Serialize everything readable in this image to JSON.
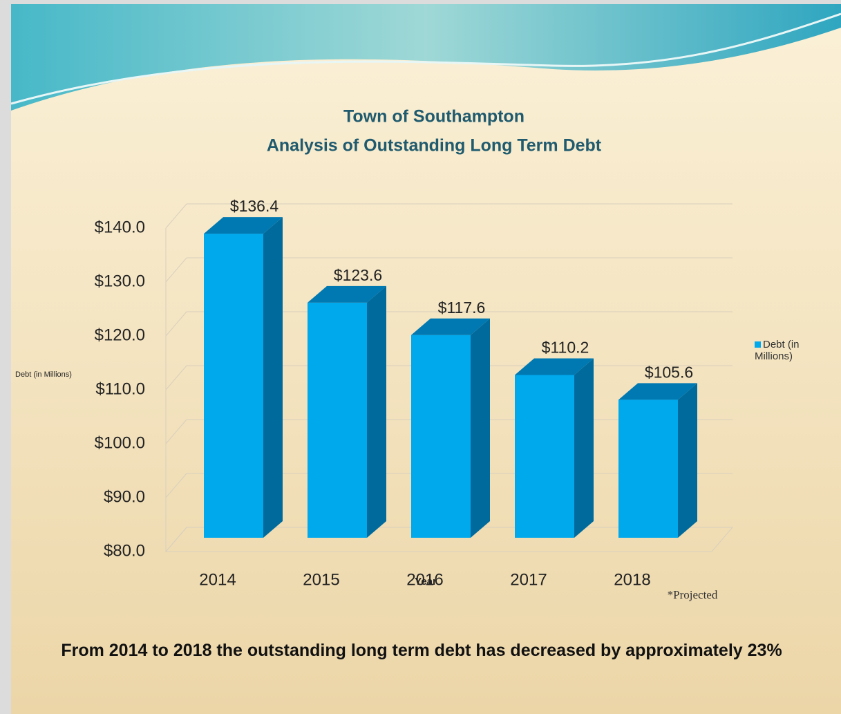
{
  "chart_data": {
    "type": "bar3d",
    "title": "Town of Southampton",
    "subtitle": "Analysis of Outstanding Long Term Debt",
    "x_label": "Year",
    "y_label": "Debt (in Millions)",
    "categories": [
      "2014",
      "2015",
      "2016",
      "2017",
      "2018"
    ],
    "series": [
      {
        "name": "Debt (in Millions)",
        "color": "#00a8ec",
        "values": [
          136.4,
          123.6,
          117.6,
          110.2,
          105.6
        ],
        "value_labels": [
          "$136.4",
          "$123.6",
          "$117.6",
          "$110.2",
          "$105.6"
        ]
      }
    ],
    "ylim": [
      80,
      140
    ],
    "yticks": [
      {
        "value": 80,
        "label": "$80.0"
      },
      {
        "value": 90,
        "label": "$90.0"
      },
      {
        "value": 100,
        "label": "$100.0"
      },
      {
        "value": 110,
        "label": "$110.0"
      },
      {
        "value": 120,
        "label": "$120.0"
      },
      {
        "value": 130,
        "label": "$130.0"
      },
      {
        "value": 140,
        "label": "$140.0"
      }
    ],
    "grid": true,
    "legend": "right",
    "note": "*Projected",
    "annotation": "From 2014 to 2018 the outstanding long term debt has decreased by approximately 23%"
  }
}
